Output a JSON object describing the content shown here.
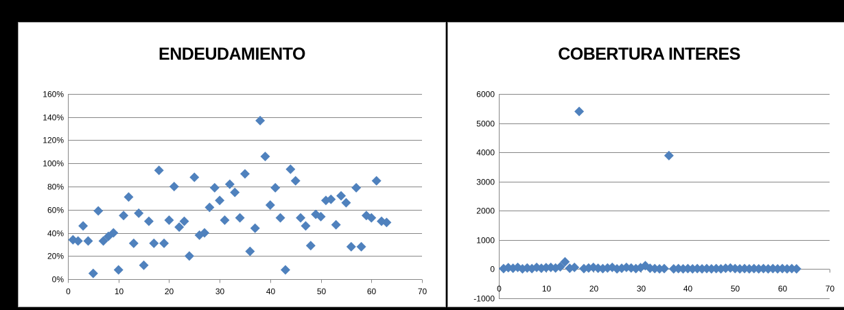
{
  "chart_data": [
    {
      "type": "scatter",
      "title": "ENDEUDAMIENTO",
      "xlabel": "",
      "ylabel": "",
      "xlim": [
        0,
        70
      ],
      "ylim": [
        0,
        1.6
      ],
      "x_ticks": [
        "0",
        "10",
        "20",
        "30",
        "40",
        "50",
        "60",
        "70"
      ],
      "y_ticks": [
        "0%",
        "20%",
        "40%",
        "60%",
        "80%",
        "100%",
        "120%",
        "140%",
        "160%"
      ],
      "grid": true,
      "legend": "none",
      "marker": "diamond",
      "color": "#4f81bd",
      "points": [
        [
          1,
          0.34
        ],
        [
          2,
          0.33
        ],
        [
          3,
          0.46
        ],
        [
          4,
          0.33
        ],
        [
          5,
          0.05
        ],
        [
          6,
          0.59
        ],
        [
          7,
          0.33
        ],
        [
          8,
          0.37
        ],
        [
          9,
          0.4
        ],
        [
          10,
          0.08
        ],
        [
          11,
          0.55
        ],
        [
          12,
          0.71
        ],
        [
          13,
          0.31
        ],
        [
          14,
          0.57
        ],
        [
          15,
          0.12
        ],
        [
          16,
          0.5
        ],
        [
          17,
          0.31
        ],
        [
          18,
          0.94
        ],
        [
          19,
          0.31
        ],
        [
          20,
          0.51
        ],
        [
          21,
          0.8
        ],
        [
          22,
          0.45
        ],
        [
          23,
          0.5
        ],
        [
          24,
          0.2
        ],
        [
          25,
          0.88
        ],
        [
          26,
          0.38
        ],
        [
          27,
          0.4
        ],
        [
          28,
          0.62
        ],
        [
          29,
          0.79
        ],
        [
          30,
          0.68
        ],
        [
          31,
          0.51
        ],
        [
          32,
          0.82
        ],
        [
          33,
          0.75
        ],
        [
          34,
          0.53
        ],
        [
          35,
          0.91
        ],
        [
          36,
          0.24
        ],
        [
          37,
          0.44
        ],
        [
          38,
          1.37
        ],
        [
          39,
          1.06
        ],
        [
          40,
          0.64
        ],
        [
          41,
          0.79
        ],
        [
          42,
          0.53
        ],
        [
          43,
          0.08
        ],
        [
          44,
          0.95
        ],
        [
          45,
          0.85
        ],
        [
          46,
          0.53
        ],
        [
          47,
          0.46
        ],
        [
          48,
          0.29
        ],
        [
          49,
          0.56
        ],
        [
          50,
          0.54
        ],
        [
          51,
          0.68
        ],
        [
          52,
          0.69
        ],
        [
          53,
          0.47
        ],
        [
          54,
          0.72
        ],
        [
          55,
          0.66
        ],
        [
          56,
          0.28
        ],
        [
          57,
          0.79
        ],
        [
          58,
          0.28
        ],
        [
          59,
          0.55
        ],
        [
          60,
          0.53
        ],
        [
          61,
          0.85
        ],
        [
          62,
          0.5
        ],
        [
          63,
          0.49
        ]
      ]
    },
    {
      "type": "scatter",
      "title": "COBERTURA INTERES",
      "xlabel": "",
      "ylabel": "",
      "xlim": [
        0,
        70
      ],
      "ylim": [
        -1000,
        6000
      ],
      "x_ticks": [
        "0",
        "10",
        "20",
        "30",
        "40",
        "50",
        "60",
        "70"
      ],
      "y_ticks": [
        "-1000",
        "0",
        "1000",
        "2000",
        "3000",
        "4000",
        "5000",
        "6000"
      ],
      "grid": true,
      "legend": "none",
      "marker": "diamond",
      "color": "#4f81bd",
      "points": [
        [
          1,
          20
        ],
        [
          2,
          50
        ],
        [
          3,
          30
        ],
        [
          4,
          60
        ],
        [
          5,
          10
        ],
        [
          6,
          40
        ],
        [
          7,
          20
        ],
        [
          8,
          60
        ],
        [
          9,
          30
        ],
        [
          10,
          50
        ],
        [
          11,
          60
        ],
        [
          12,
          40
        ],
        [
          13,
          80
        ],
        [
          14,
          250
        ],
        [
          15,
          30
        ],
        [
          16,
          60
        ],
        [
          17,
          5400
        ],
        [
          18,
          20
        ],
        [
          19,
          40
        ],
        [
          20,
          60
        ],
        [
          21,
          30
        ],
        [
          22,
          20
        ],
        [
          23,
          40
        ],
        [
          24,
          60
        ],
        [
          25,
          10
        ],
        [
          26,
          30
        ],
        [
          27,
          60
        ],
        [
          28,
          40
        ],
        [
          29,
          20
        ],
        [
          30,
          50
        ],
        [
          31,
          120
        ],
        [
          32,
          30
        ],
        [
          33,
          20
        ],
        [
          34,
          10
        ],
        [
          35,
          20
        ],
        [
          36,
          3890
        ],
        [
          37,
          10
        ],
        [
          38,
          20
        ],
        [
          39,
          10
        ],
        [
          40,
          20
        ],
        [
          41,
          10
        ],
        [
          42,
          20
        ],
        [
          43,
          10
        ],
        [
          44,
          20
        ],
        [
          45,
          10
        ],
        [
          46,
          20
        ],
        [
          47,
          10
        ],
        [
          48,
          30
        ],
        [
          49,
          40
        ],
        [
          50,
          20
        ],
        [
          51,
          10
        ],
        [
          52,
          20
        ],
        [
          53,
          10
        ],
        [
          54,
          20
        ],
        [
          55,
          10
        ],
        [
          56,
          20
        ],
        [
          57,
          10
        ],
        [
          58,
          20
        ],
        [
          59,
          10
        ],
        [
          60,
          20
        ],
        [
          61,
          10
        ],
        [
          62,
          20
        ],
        [
          63,
          10
        ]
      ]
    }
  ]
}
